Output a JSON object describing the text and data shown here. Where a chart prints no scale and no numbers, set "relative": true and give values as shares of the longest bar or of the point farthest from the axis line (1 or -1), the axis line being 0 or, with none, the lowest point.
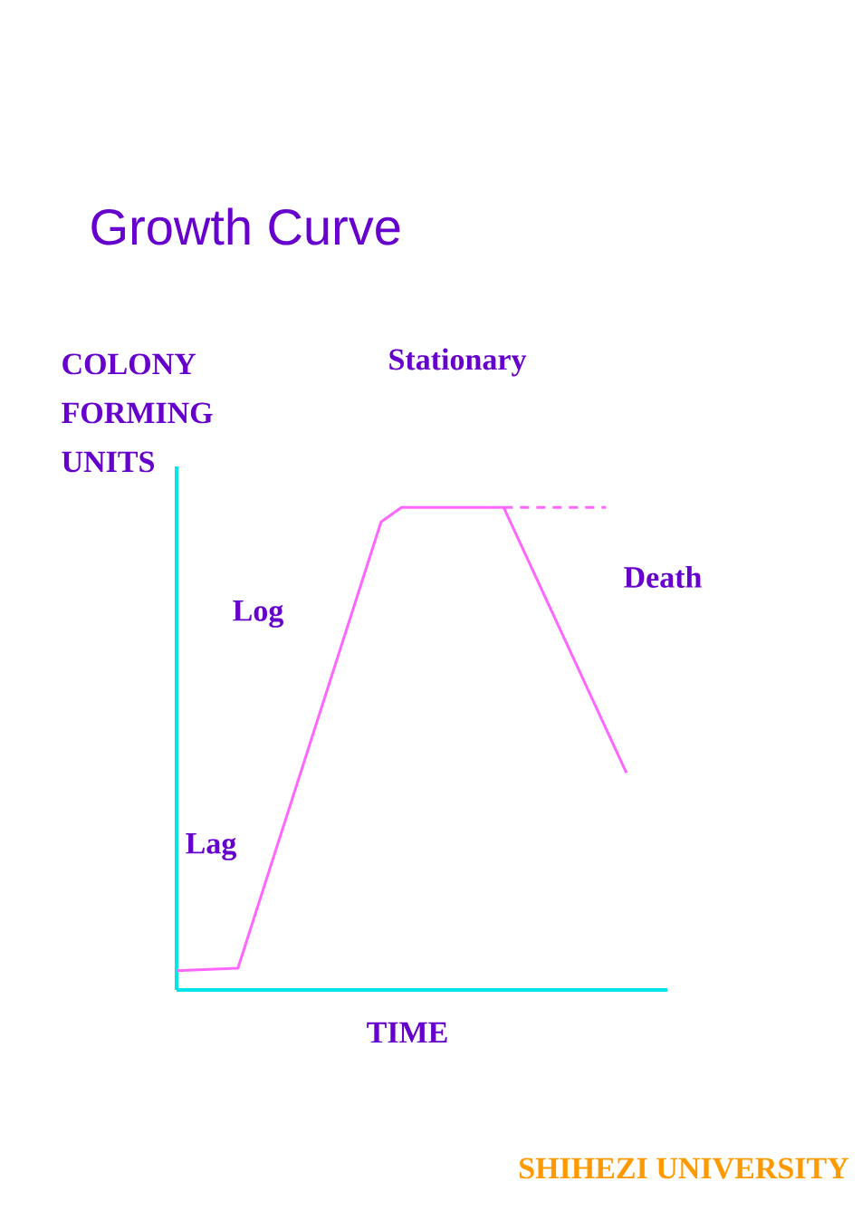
{
  "chart_data": {
    "type": "line",
    "title": "Growth Curve",
    "xlabel": "TIME",
    "ylabel": "COLONY FORMING UNITS",
    "relative": true,
    "marker": "none",
    "annotations": [
      "Stationary",
      "Log",
      "Lag",
      "Death",
      "SHIHEZI UNIVERSITY"
    ],
    "categories": [
      null,
      null,
      null,
      null,
      null,
      null,
      null,
      null,
      null,
      null,
      null,
      null,
      null,
      null,
      null,
      null,
      null,
      null,
      null,
      null,
      null,
      null,
      null,
      null,
      null
    ],
    "series": [
      {
        "color": "#ff66ff",
        "line_style": "solid",
        "values": [
          0.04,
          null,
          null,
          0.045,
          null,
          null,
          null,
          null,
          null,
          null,
          0.97,
          1,
          null,
          null,
          null,
          null,
          1,
          null,
          null,
          null,
          null,
          null,
          0.45,
          null,
          null
        ]
      },
      {
        "color": "#ff66ff",
        "line_style": "dashed",
        "values": [
          null,
          null,
          null,
          null,
          null,
          null,
          null,
          null,
          null,
          null,
          null,
          null,
          null,
          null,
          null,
          null,
          1,
          null,
          null,
          null,
          null,
          1,
          null,
          null,
          null
        ]
      }
    ]
  }
}
